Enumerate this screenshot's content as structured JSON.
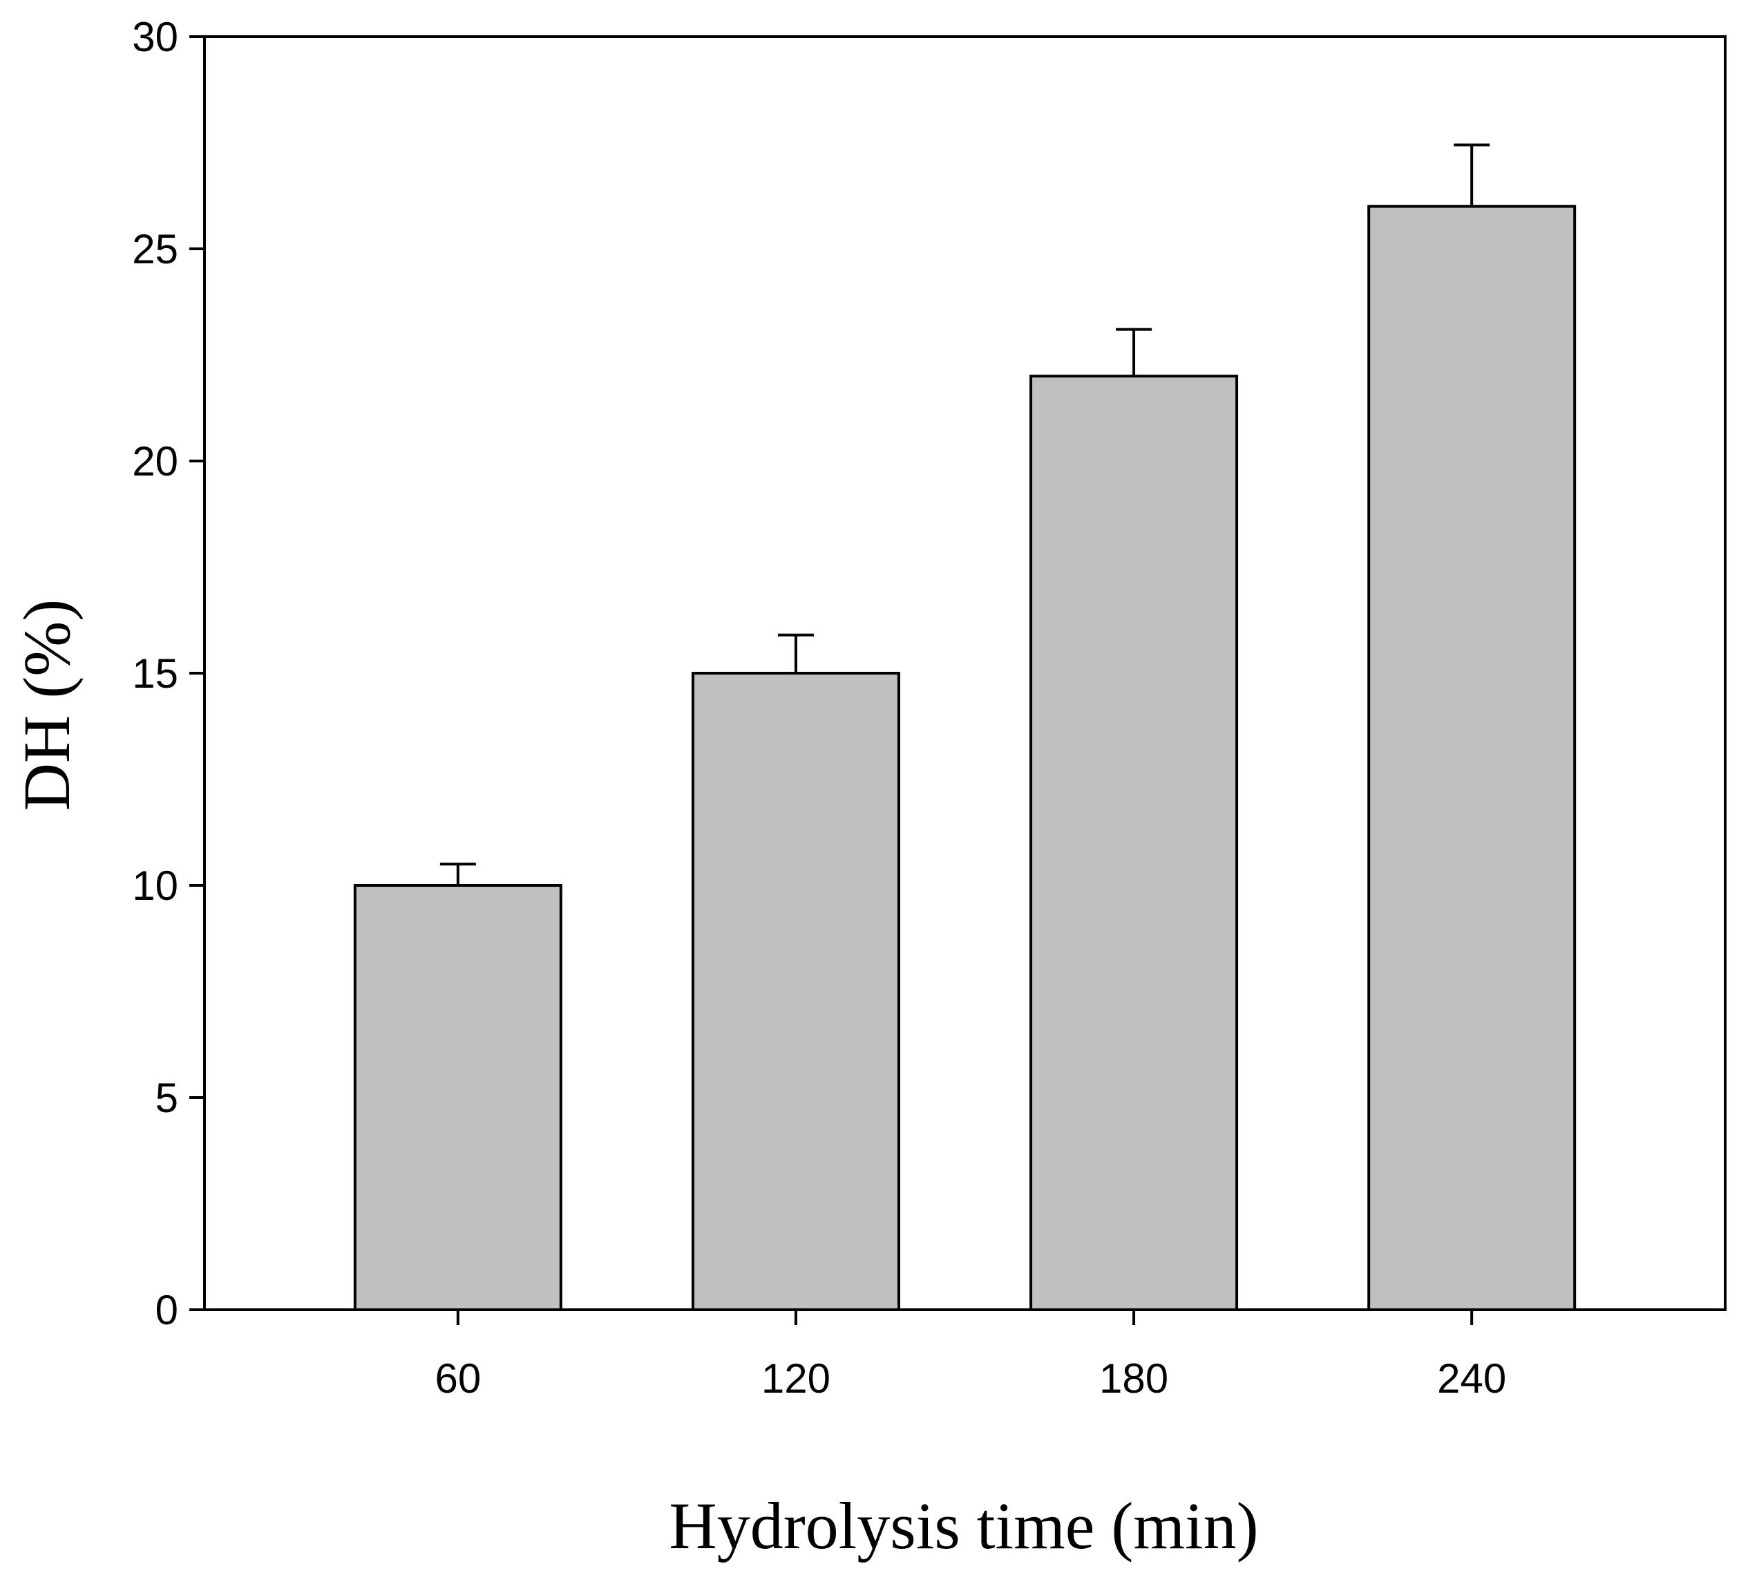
{
  "chart_data": {
    "type": "bar",
    "title": "",
    "xlabel": "Hydrolysis time (min)",
    "ylabel": "DH (%)",
    "categories": [
      "60",
      "120",
      "180",
      "240"
    ],
    "series": [
      {
        "values": [
          10,
          15,
          22,
          26
        ],
        "errors": [
          0.5,
          0.9,
          1.1,
          1.45
        ]
      }
    ],
    "ylim": [
      0,
      30
    ],
    "yticks": [
      "0",
      "5",
      "10",
      "15",
      "20",
      "25",
      "30"
    ],
    "grid": false,
    "bar_color": "#c0c0c0",
    "edge_color": "#000000"
  }
}
